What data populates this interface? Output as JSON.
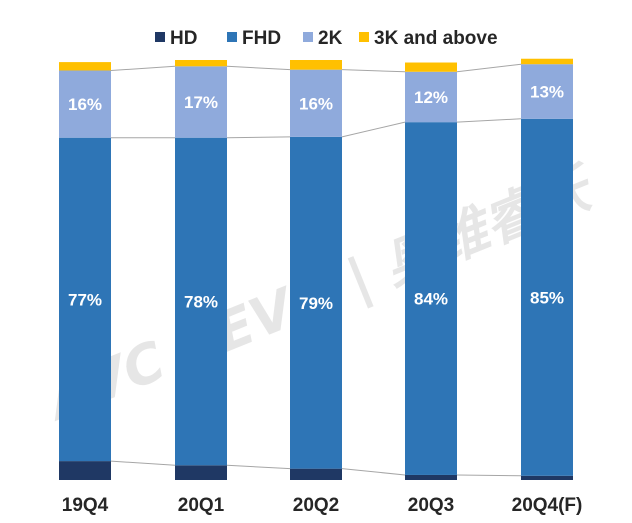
{
  "chart_data": {
    "type": "bar",
    "stacked": true,
    "normalized": true,
    "categories": [
      "19Q4",
      "20Q1",
      "20Q2",
      "20Q3",
      "20Q4(F)"
    ],
    "series": [
      {
        "name": "HD",
        "color": "#1f3864",
        "values": [
          4.5,
          3.5,
          2.7,
          1.2,
          1.0
        ]
      },
      {
        "name": "FHD",
        "color": "#2e75b6",
        "values": [
          77,
          78,
          79,
          84,
          85
        ]
      },
      {
        "name": "2K",
        "color": "#8faadc",
        "values": [
          16,
          17,
          16,
          12,
          13
        ]
      },
      {
        "name": "3K and above",
        "color": "#ffc000",
        "values": [
          2.0,
          1.5,
          2.3,
          2.2,
          1.3
        ]
      }
    ],
    "labels": {
      "FHD": [
        "77%",
        "78%",
        "79%",
        "84%",
        "85%"
      ],
      "2K": [
        "16%",
        "17%",
        "16%",
        "12%",
        "13%"
      ]
    },
    "ylim": [
      0,
      100
    ],
    "legend_position": "top",
    "grid": false,
    "connector_lines": true,
    "title": "",
    "xlabel": "",
    "ylabel": ""
  },
  "watermark": "AVC REVO | 奥维睿沃"
}
